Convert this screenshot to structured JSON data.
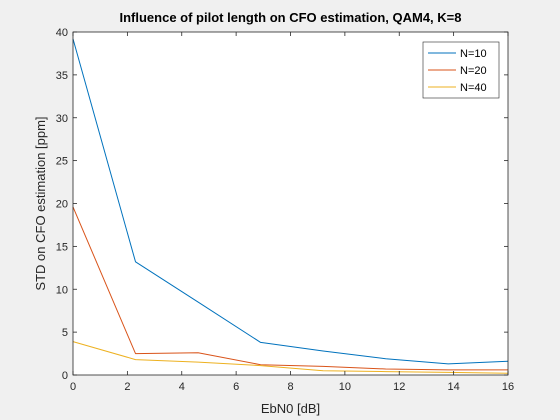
{
  "chart_data": {
    "type": "line",
    "title": "Influence of pilot length on CFO estimation, QAM4, K=8",
    "xlabel": "EbN0 [dB]",
    "ylabel": "STD on CFO estimation [ppm]",
    "xlim": [
      0,
      16
    ],
    "ylim": [
      0,
      40
    ],
    "xticks": [
      0,
      2,
      4,
      6,
      8,
      10,
      12,
      14,
      16
    ],
    "yticks": [
      0,
      5,
      10,
      15,
      20,
      25,
      30,
      35,
      40
    ],
    "grid": false,
    "legend_position": "top-right",
    "x": [
      0,
      2.3,
      4.6,
      6.9,
      9.2,
      11.5,
      13.8,
      16
    ],
    "series": [
      {
        "name": "N=10",
        "color": "#0072bd",
        "values": [
          39.2,
          13.2,
          8.5,
          3.8,
          2.8,
          1.9,
          1.3,
          1.6
        ]
      },
      {
        "name": "N=20",
        "color": "#d95319",
        "values": [
          19.6,
          2.5,
          2.6,
          1.2,
          1.0,
          0.7,
          0.6,
          0.6
        ]
      },
      {
        "name": "N=40",
        "color": "#edb120",
        "values": [
          3.9,
          1.8,
          1.5,
          1.1,
          0.5,
          0.4,
          0.3,
          0.2
        ]
      }
    ]
  }
}
